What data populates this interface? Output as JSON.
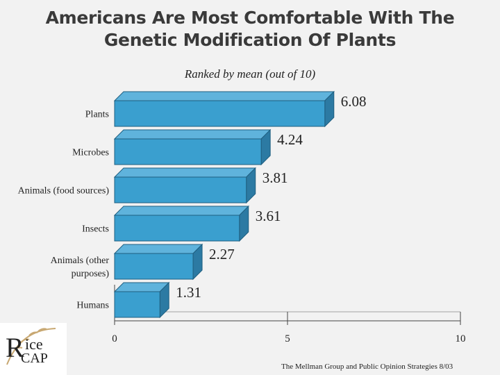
{
  "chart_data": {
    "type": "bar",
    "orientation": "horizontal",
    "title_line1": "Americans Are Most Comfortable With The",
    "title_line2": "Genetic Modification Of Plants",
    "subtitle": "Ranked by mean (out of 10)",
    "categories": [
      [
        "Plants"
      ],
      [
        "Microbes"
      ],
      [
        "Animals (food sources)"
      ],
      [
        "Insects"
      ],
      [
        "Animals (other",
        "purposes)"
      ],
      [
        "Humans"
      ]
    ],
    "values": [
      6.08,
      4.24,
      3.81,
      3.61,
      2.27,
      1.31
    ],
    "value_labels": [
      "6.08",
      "4.24",
      "3.81",
      "3.61",
      "2.27",
      "1.31"
    ],
    "xlim": [
      0,
      10
    ],
    "x_ticks": [
      0,
      5,
      10
    ],
    "x_tick_labels": [
      "0",
      "5",
      "10"
    ],
    "bar_color": "#3a9fcf",
    "grid": false,
    "legend": "none"
  },
  "logo": {
    "r": "R",
    "ice": "ice",
    "cap": "CAP"
  },
  "source": "The Mellman Group and Public Opinion Strategies 8/03"
}
